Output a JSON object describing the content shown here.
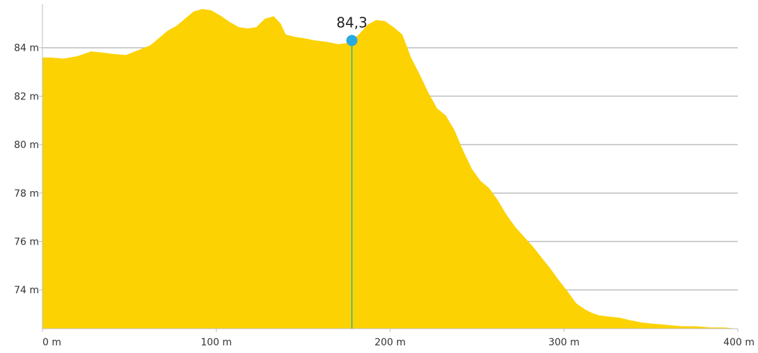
{
  "chart_data": {
    "type": "area",
    "title": "",
    "xlabel": "",
    "ylabel": "",
    "x_unit": "m",
    "y_unit": "m",
    "xlim": [
      0,
      400
    ],
    "ylim": [
      72.4,
      85.8
    ],
    "x_ticks": [
      0,
      100,
      200,
      300,
      400
    ],
    "x_tick_labels": [
      "0 m",
      "100 m",
      "200 m",
      "300 m",
      "400 m"
    ],
    "y_ticks": [
      74,
      76,
      78,
      80,
      82,
      84
    ],
    "y_tick_labels": [
      "74 m",
      "76 m",
      "78 m",
      "80 m",
      "82 m",
      "84 m"
    ],
    "grid": "horizontal",
    "series": [
      {
        "x": [
          0,
          5,
          12,
          20,
          28,
          35,
          40,
          48,
          55,
          62,
          67,
          72,
          77,
          82,
          87,
          92,
          97,
          103,
          108,
          113,
          118,
          123,
          128,
          133,
          137,
          140,
          145,
          150,
          157,
          163,
          170,
          176,
          178,
          182,
          187,
          192,
          197,
          202,
          207,
          212,
          217,
          222,
          227,
          232,
          237,
          242,
          247,
          252,
          257,
          262,
          267,
          272,
          277,
          282,
          287,
          292,
          297,
          302,
          307,
          312,
          316,
          320,
          326,
          332,
          338,
          345,
          352,
          360,
          368,
          376,
          384,
          392,
          400
        ],
        "y": [
          83.6,
          83.6,
          83.55,
          83.65,
          83.85,
          83.8,
          83.75,
          83.7,
          83.9,
          84.1,
          84.4,
          84.7,
          84.9,
          85.2,
          85.5,
          85.6,
          85.55,
          85.3,
          85.05,
          84.85,
          84.8,
          84.85,
          85.2,
          85.3,
          85.0,
          84.55,
          84.45,
          84.4,
          84.3,
          84.25,
          84.15,
          84.2,
          84.3,
          84.55,
          84.95,
          85.15,
          85.1,
          84.85,
          84.55,
          83.6,
          82.9,
          82.15,
          81.5,
          81.2,
          80.6,
          79.75,
          79.0,
          78.5,
          78.2,
          77.7,
          77.1,
          76.6,
          76.2,
          75.8,
          75.35,
          74.9,
          74.4,
          73.95,
          73.45,
          73.2,
          73.05,
          72.95,
          72.9,
          72.85,
          72.75,
          72.65,
          72.6,
          72.55,
          72.5,
          72.5,
          72.45,
          72.45,
          72.4
        ],
        "color": "#fcd202"
      }
    ],
    "marker": {
      "x": 178,
      "y": 84.3,
      "label": "84,3",
      "color": "#29a9e0",
      "line_color": "#2bb09a"
    }
  }
}
